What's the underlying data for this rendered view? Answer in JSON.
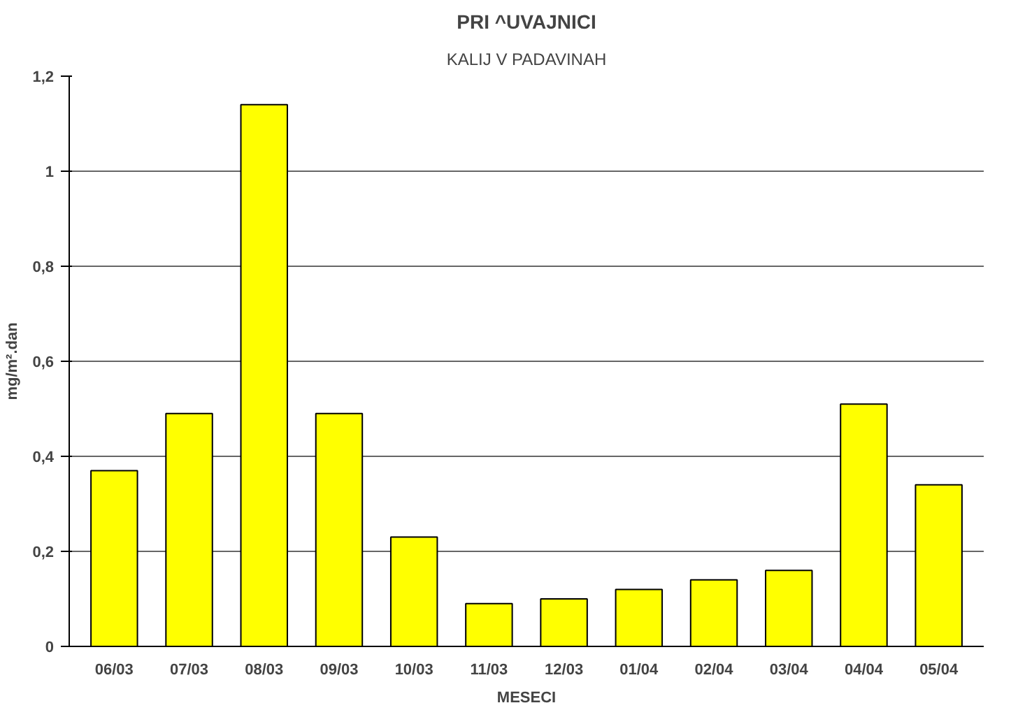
{
  "chart_data": {
    "type": "bar",
    "title": "PRI ^UVAJNICI",
    "subtitle": "KALIJ V PADAVINAH",
    "xlabel": "MESECI",
    "ylabel": "mg/m².dan",
    "categories": [
      "06/03",
      "07/03",
      "08/03",
      "09/03",
      "10/03",
      "11/03",
      "12/03",
      "01/04",
      "02/04",
      "03/04",
      "04/04",
      "05/04"
    ],
    "values": [
      0.37,
      0.49,
      1.14,
      0.49,
      0.23,
      0.09,
      0.1,
      0.12,
      0.14,
      0.16,
      0.51,
      0.34
    ],
    "color": "#ffff00",
    "ylim": [
      0,
      1.2
    ],
    "yticks": [
      0,
      {
        "value": 0.2,
        "label": "0,2"
      },
      {
        "value": 0.4,
        "label": "0,4"
      },
      {
        "value": 0.6,
        "label": "0,6"
      },
      {
        "value": 0.8,
        "label": "0,8"
      },
      1,
      {
        "value": 1.2,
        "label": "1,2"
      }
    ],
    "grid": "y"
  }
}
